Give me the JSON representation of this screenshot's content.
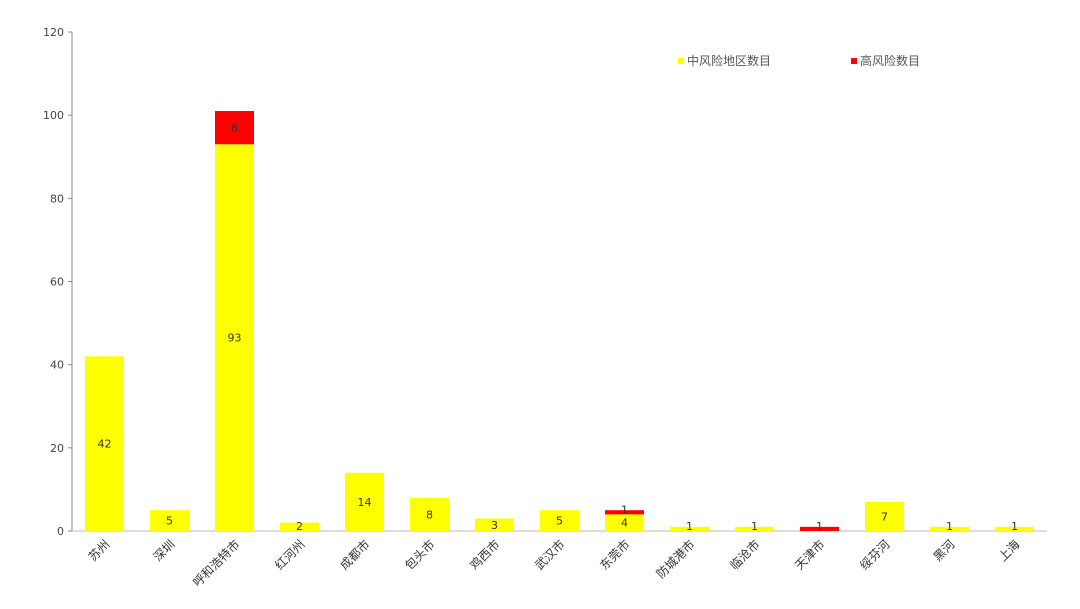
{
  "chart_data": {
    "type": "bar",
    "stacked": true,
    "title": "",
    "xlabel": "",
    "ylabel": "",
    "ylim": [
      0,
      120
    ],
    "yticks": [
      0,
      20,
      40,
      60,
      80,
      100,
      120
    ],
    "grid": false,
    "legend_position": "top-right",
    "categories": [
      "苏州",
      "深圳",
      "呼和浩特市",
      "红河州",
      "成都市",
      "包头市",
      "鸡西市",
      "武汉市",
      "东莞市",
      "防城港市",
      "临沧市",
      "天津市",
      "绥芬河",
      "黑河",
      "上海"
    ],
    "series": [
      {
        "name": "中风险地区数目",
        "color": "#FFFF00",
        "values": [
          42,
          5,
          93,
          2,
          14,
          8,
          3,
          5,
          4,
          1,
          1,
          0,
          7,
          1,
          1
        ],
        "labels": [
          "42",
          "5",
          "93",
          "2",
          "14",
          "8",
          "3",
          "5",
          "4",
          "1",
          "1",
          "",
          "7",
          "1",
          "1"
        ]
      },
      {
        "name": "高风险数目",
        "color": "#FF0000",
        "values": [
          0,
          0,
          8,
          0,
          0,
          0,
          0,
          0,
          1,
          0,
          0,
          1,
          0,
          0,
          0
        ],
        "labels": [
          "",
          "",
          "8",
          "",
          "",
          "",
          "",
          "",
          "1",
          "",
          "",
          "1",
          "",
          "",
          ""
        ]
      }
    ]
  }
}
